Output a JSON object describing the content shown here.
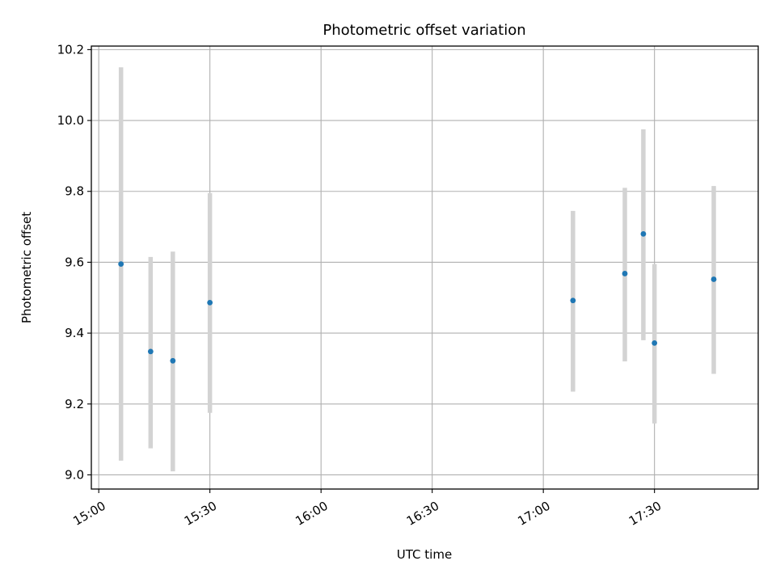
{
  "chart_data": {
    "type": "scatter",
    "title": "Photometric offset variation",
    "xlabel": "UTC time",
    "ylabel": "Photometric offset",
    "x_axis_type": "time",
    "xlim": [
      "14:58",
      "17:58"
    ],
    "ylim": [
      8.96,
      10.21
    ],
    "xticks": [
      "15:00",
      "15:30",
      "16:00",
      "16:30",
      "17:00",
      "17:30"
    ],
    "yticks": [
      9.0,
      9.2,
      9.4,
      9.6,
      9.8,
      10.0,
      10.2
    ],
    "ytick_labels": [
      "9.0",
      "9.2",
      "9.4",
      "9.6",
      "9.8",
      "10.0",
      "10.2"
    ],
    "grid": true,
    "marker_color": "#1f77b4",
    "errorbar_color": "#d3d3d3",
    "points": [
      {
        "time": "15:06",
        "y": 9.595,
        "ylow": 9.04,
        "yhigh": 10.15
      },
      {
        "time": "15:14",
        "y": 9.348,
        "ylow": 9.075,
        "yhigh": 9.615
      },
      {
        "time": "15:20",
        "y": 9.322,
        "ylow": 9.01,
        "yhigh": 9.63
      },
      {
        "time": "15:30",
        "y": 9.486,
        "ylow": 9.175,
        "yhigh": 9.795
      },
      {
        "time": "17:08",
        "y": 9.492,
        "ylow": 9.235,
        "yhigh": 9.745
      },
      {
        "time": "17:22",
        "y": 9.568,
        "ylow": 9.32,
        "yhigh": 9.81
      },
      {
        "time": "17:27",
        "y": 9.68,
        "ylow": 9.38,
        "yhigh": 9.975
      },
      {
        "time": "17:30",
        "y": 9.372,
        "ylow": 9.145,
        "yhigh": 9.595
      },
      {
        "time": "17:46",
        "y": 9.552,
        "ylow": 9.285,
        "yhigh": 9.815
      }
    ]
  }
}
